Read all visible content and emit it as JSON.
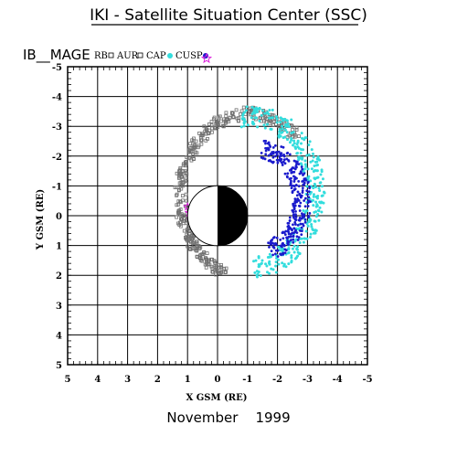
{
  "header": {
    "title": "IKI - Satellite Situation Center (SSC)",
    "satellite": "IB__MAGE",
    "footer_date": "November    1999"
  },
  "legend": {
    "items": [
      {
        "label": "RB",
        "symbol": "square-outline",
        "color": "#000000"
      },
      {
        "label": "AUR",
        "symbol": "square-outline",
        "color": "#000000"
      },
      {
        "label": "CAP",
        "symbol": "dot",
        "color": "#33dddd"
      },
      {
        "label": "CUSP",
        "symbol": "dot",
        "color": "#1a1acc"
      },
      {
        "label": "",
        "symbol": "star",
        "color": "#dd22dd"
      }
    ]
  },
  "chart_data": {
    "type": "scatter",
    "xlabel": "X GSM (RE)",
    "ylabel": "Y GSM (RE)",
    "xlim": [
      5,
      -5
    ],
    "ylim": [
      -5,
      5
    ],
    "xticks": [
      5,
      4,
      3,
      2,
      1,
      0,
      -1,
      -2,
      -3,
      -4,
      -5
    ],
    "yticks": [
      -5,
      -4,
      -3,
      -2,
      -1,
      0,
      1,
      2,
      3,
      4,
      5
    ],
    "xtick_labels": [
      "5",
      "4",
      "3",
      "2",
      "1",
      "0",
      "-1",
      "-2",
      "-3",
      "-4",
      "-5"
    ],
    "ytick_labels": [
      "-5",
      "-4",
      "-3",
      "-2",
      "-1",
      "0",
      "1",
      "2",
      "3",
      "4",
      "5"
    ],
    "grid": true,
    "earth": {
      "x": 0,
      "y": 0,
      "radius": 1,
      "day_side": "positive-x",
      "fill_night": "#000000"
    },
    "orbit_loop": {
      "description_points": [
        {
          "x": 1.0,
          "y": 0.0
        },
        {
          "x": 0.6,
          "y": -1.2
        },
        {
          "x": -0.2,
          "y": -2.5
        },
        {
          "x": -1.3,
          "y": -3.3
        },
        {
          "x": -2.3,
          "y": -3.1
        },
        {
          "x": -2.9,
          "y": -2.2
        },
        {
          "x": -3.1,
          "y": -0.8
        },
        {
          "x": -2.8,
          "y": 0.6
        },
        {
          "x": -2.0,
          "y": 1.2
        },
        {
          "x": -0.8,
          "y": 1.7
        },
        {
          "x": 0.2,
          "y": 1.6
        },
        {
          "x": 0.9,
          "y": 0.8
        }
      ]
    },
    "series": [
      {
        "name": "AUR",
        "color": "#707070",
        "region": "outer-dayside-and-flanks"
      },
      {
        "name": "CAP",
        "color": "#33dddd",
        "region": "nightside-outer-arc"
      },
      {
        "name": "CUSP",
        "color": "#1a1acc",
        "region": "nightside-inner-arc"
      },
      {
        "name": "star",
        "color": "#dd22dd",
        "points": [
          {
            "x": 1.0,
            "y": -0.3
          },
          {
            "x": 0.95,
            "y": -0.1
          },
          {
            "x": 0.9,
            "y": 0.05
          },
          {
            "x": 0.88,
            "y": 0.15
          }
        ]
      }
    ]
  }
}
